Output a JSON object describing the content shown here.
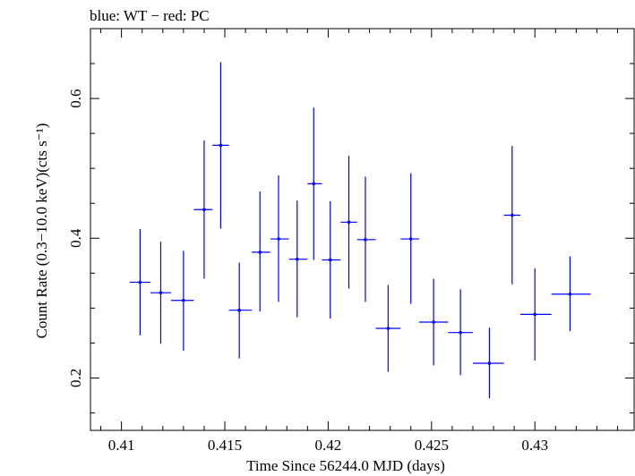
{
  "chart_data": {
    "type": "scatter",
    "title": "blue: WT − red: PC",
    "xlabel": "Time Since 56244.0 MJD (days)",
    "ylabel": "Count Rate (0.3−10.0 keV)(cts s⁻¹)",
    "xlim": [
      0.4085,
      0.4348
    ],
    "ylim": [
      0.125,
      0.7
    ],
    "x_ticks": [
      {
        "value": 0.41,
        "label": "0.41"
      },
      {
        "value": 0.415,
        "label": "0.415"
      },
      {
        "value": 0.42,
        "label": "0.42"
      },
      {
        "value": 0.425,
        "label": "0.425"
      },
      {
        "value": 0.43,
        "label": "0.43"
      }
    ],
    "y_ticks": [
      {
        "value": 0.2,
        "label": "0.2"
      },
      {
        "value": 0.4,
        "label": "0.4"
      },
      {
        "value": 0.6,
        "label": "0.6"
      }
    ],
    "series": [
      {
        "color": "#0000ff",
        "points": [
          {
            "x": 0.4109,
            "y": 0.337,
            "xlo": 0.4104,
            "xhi": 0.4114,
            "ylo": 0.261,
            "yhi": 0.413
          },
          {
            "x": 0.4119,
            "y": 0.322,
            "xlo": 0.4114,
            "xhi": 0.4124,
            "ylo": 0.249,
            "yhi": 0.395
          },
          {
            "x": 0.413,
            "y": 0.311,
            "xlo": 0.4124,
            "xhi": 0.4135,
            "ylo": 0.239,
            "yhi": 0.382
          },
          {
            "x": 0.414,
            "y": 0.441,
            "xlo": 0.4135,
            "xhi": 0.4144,
            "ylo": 0.342,
            "yhi": 0.54
          },
          {
            "x": 0.4148,
            "y": 0.533,
            "xlo": 0.4144,
            "xhi": 0.4152,
            "ylo": 0.414,
            "yhi": 0.652
          },
          {
            "x": 0.4157,
            "y": 0.297,
            "xlo": 0.4152,
            "xhi": 0.4163,
            "ylo": 0.228,
            "yhi": 0.365
          },
          {
            "x": 0.4167,
            "y": 0.38,
            "xlo": 0.4163,
            "xhi": 0.4172,
            "ylo": 0.295,
            "yhi": 0.467
          },
          {
            "x": 0.4176,
            "y": 0.399,
            "xlo": 0.4172,
            "xhi": 0.4181,
            "ylo": 0.309,
            "yhi": 0.49
          },
          {
            "x": 0.4185,
            "y": 0.37,
            "xlo": 0.4181,
            "xhi": 0.419,
            "ylo": 0.287,
            "yhi": 0.454
          },
          {
            "x": 0.4193,
            "y": 0.478,
            "xlo": 0.419,
            "xhi": 0.4197,
            "ylo": 0.369,
            "yhi": 0.587
          },
          {
            "x": 0.4201,
            "y": 0.369,
            "xlo": 0.4197,
            "xhi": 0.4206,
            "ylo": 0.285,
            "yhi": 0.453
          },
          {
            "x": 0.421,
            "y": 0.423,
            "xlo": 0.4206,
            "xhi": 0.4214,
            "ylo": 0.328,
            "yhi": 0.518
          },
          {
            "x": 0.4218,
            "y": 0.398,
            "xlo": 0.4214,
            "xhi": 0.4223,
            "ylo": 0.309,
            "yhi": 0.488
          },
          {
            "x": 0.4229,
            "y": 0.271,
            "xlo": 0.4223,
            "xhi": 0.4235,
            "ylo": 0.209,
            "yhi": 0.333
          },
          {
            "x": 0.424,
            "y": 0.399,
            "xlo": 0.4235,
            "xhi": 0.4244,
            "ylo": 0.306,
            "yhi": 0.493
          },
          {
            "x": 0.4251,
            "y": 0.28,
            "xlo": 0.4244,
            "xhi": 0.4258,
            "ylo": 0.218,
            "yhi": 0.342
          },
          {
            "x": 0.4264,
            "y": 0.265,
            "xlo": 0.4258,
            "xhi": 0.427,
            "ylo": 0.204,
            "yhi": 0.327
          },
          {
            "x": 0.4278,
            "y": 0.221,
            "xlo": 0.427,
            "xhi": 0.4285,
            "ylo": 0.171,
            "yhi": 0.272
          },
          {
            "x": 0.4289,
            "y": 0.433,
            "xlo": 0.4285,
            "xhi": 0.4293,
            "ylo": 0.334,
            "yhi": 0.532
          },
          {
            "x": 0.43,
            "y": 0.291,
            "xlo": 0.4293,
            "xhi": 0.4308,
            "ylo": 0.225,
            "yhi": 0.357
          },
          {
            "x": 0.4317,
            "y": 0.32,
            "xlo": 0.4308,
            "xhi": 0.4327,
            "ylo": 0.267,
            "yhi": 0.374
          }
        ]
      }
    ]
  }
}
